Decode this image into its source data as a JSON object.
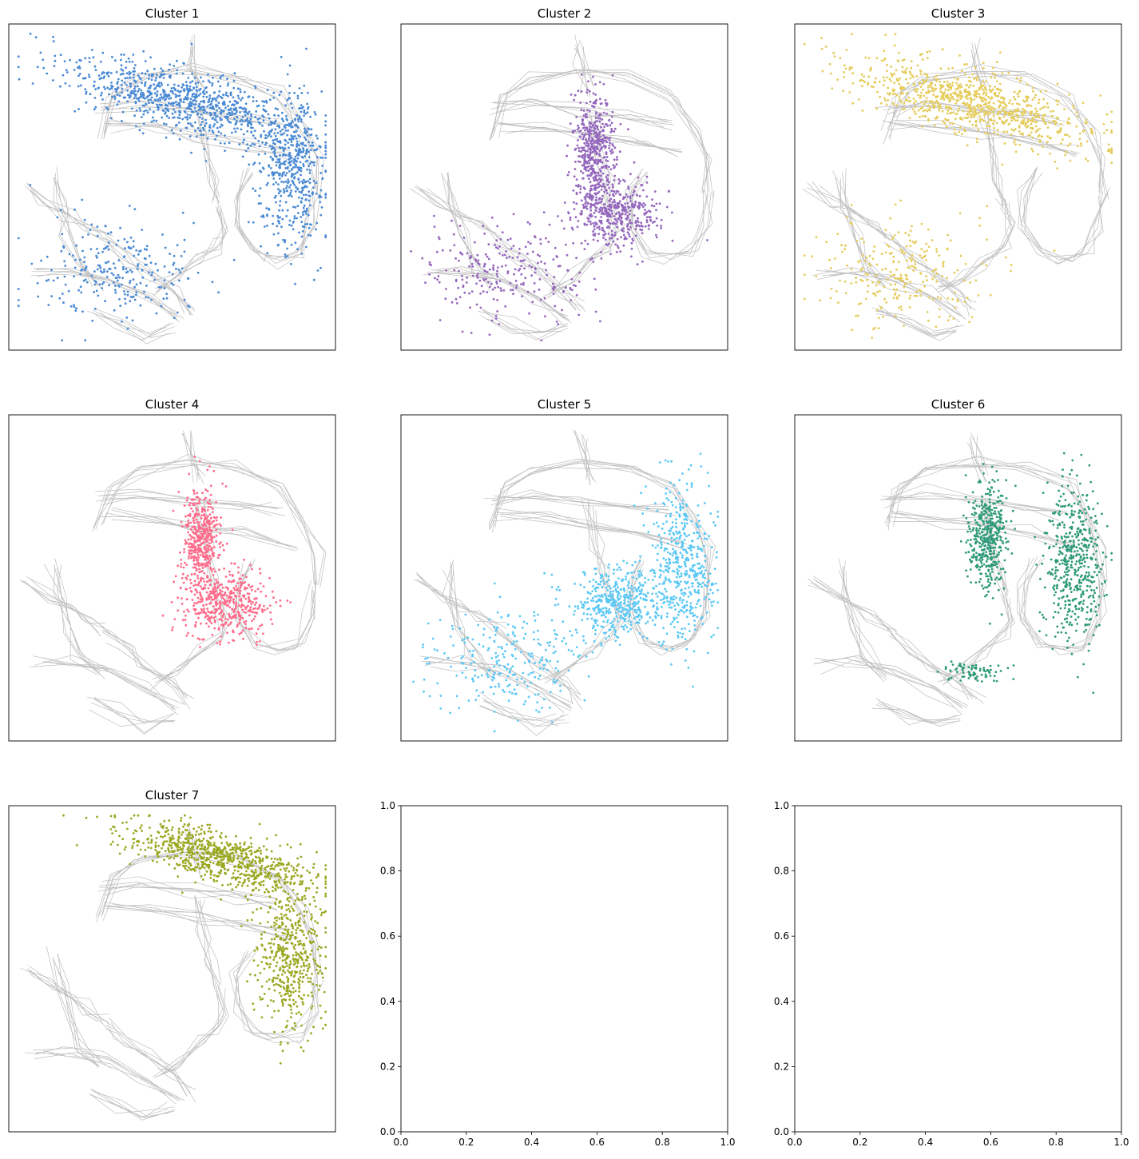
{
  "colors": {
    "background_graph": "#bdbdbd",
    "axis": "#000000"
  },
  "chart_data": [
    {
      "type": "scatter",
      "title": "Cluster 1",
      "color": "#4a8ad4",
      "xticks": [],
      "yticks": [],
      "highlight_regions": [
        "upper band",
        "right arc",
        "lower-left branches"
      ]
    },
    {
      "type": "scatter",
      "title": "Cluster 2",
      "color": "#9467bd",
      "xticks": [],
      "yticks": [],
      "highlight_regions": [
        "middle junction",
        "lower-left branches",
        "center stem"
      ]
    },
    {
      "type": "scatter",
      "title": "Cluster 3",
      "color": "#e5cc5c",
      "xticks": [],
      "yticks": [],
      "highlight_regions": [
        "upper band",
        "lower-left branches"
      ]
    },
    {
      "type": "scatter",
      "title": "Cluster 4",
      "color": "#ff6b8a",
      "xticks": [],
      "yticks": [],
      "highlight_regions": [
        "center stem",
        "middle junction"
      ]
    },
    {
      "type": "scatter",
      "title": "Cluster 5",
      "color": "#5bc8f5",
      "xticks": [],
      "yticks": [],
      "highlight_regions": [
        "right arc",
        "middle junction",
        "lower-left branches"
      ]
    },
    {
      "type": "scatter",
      "title": "Cluster 6",
      "color": "#2e9a78",
      "xticks": [],
      "yticks": [],
      "highlight_regions": [
        "right arc",
        "center stem",
        "lower tail"
      ]
    },
    {
      "type": "scatter",
      "title": "Cluster 7",
      "color": "#9aa821",
      "xticks": [],
      "yticks": [],
      "highlight_regions": [
        "top crest",
        "right arc"
      ]
    },
    {
      "type": "empty",
      "title": "",
      "xlim": [
        0.0,
        1.0
      ],
      "ylim": [
        0.0,
        1.0
      ],
      "xticks": [
        "0.0",
        "0.2",
        "0.4",
        "0.6",
        "0.8",
        "1.0"
      ],
      "yticks": [
        "0.0",
        "0.2",
        "0.4",
        "0.6",
        "0.8",
        "1.0"
      ]
    },
    {
      "type": "empty",
      "title": "",
      "xlim": [
        0.0,
        1.0
      ],
      "ylim": [
        0.0,
        1.0
      ],
      "xticks": [
        "0.0",
        "0.2",
        "0.4",
        "0.6",
        "0.8",
        "1.0"
      ],
      "yticks": [
        "0.0",
        "0.2",
        "0.4",
        "0.6",
        "0.8",
        "1.0"
      ]
    }
  ]
}
